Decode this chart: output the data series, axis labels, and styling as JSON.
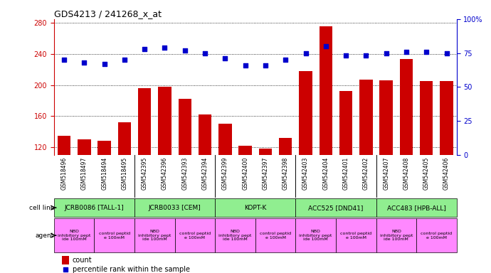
{
  "title": "GDS4213 / 241268_x_at",
  "samples": [
    "GSM518496",
    "GSM518497",
    "GSM518494",
    "GSM518495",
    "GSM542395",
    "GSM542396",
    "GSM542393",
    "GSM542394",
    "GSM542399",
    "GSM542400",
    "GSM542397",
    "GSM542398",
    "GSM542403",
    "GSM542404",
    "GSM542401",
    "GSM542402",
    "GSM542407",
    "GSM542408",
    "GSM542405",
    "GSM542406"
  ],
  "counts": [
    135,
    130,
    128,
    152,
    196,
    198,
    182,
    162,
    150,
    122,
    118,
    132,
    218,
    276,
    192,
    207,
    206,
    234,
    205,
    205
  ],
  "percentiles": [
    70,
    68,
    67,
    70,
    78,
    79,
    77,
    75,
    71,
    66,
    66,
    70,
    75,
    80,
    73,
    73,
    75,
    76,
    76,
    75
  ],
  "cell_lines": [
    {
      "label": "JCRB0086 [TALL-1]",
      "start": 0,
      "end": 4,
      "color": "#90EE90"
    },
    {
      "label": "JCRB0033 [CEM]",
      "start": 4,
      "end": 8,
      "color": "#90EE90"
    },
    {
      "label": "KOPT-K",
      "start": 8,
      "end": 12,
      "color": "#90EE90"
    },
    {
      "label": "ACC525 [DND41]",
      "start": 12,
      "end": 16,
      "color": "#90EE90"
    },
    {
      "label": "ACC483 [HPB-ALL]",
      "start": 16,
      "end": 20,
      "color": "#90EE90"
    }
  ],
  "agents": [
    {
      "label": "NBD\ninhibitory pept\nide 100mM",
      "start": 0,
      "end": 2,
      "color": "#FF88FF"
    },
    {
      "label": "control peptid\ne 100mM",
      "start": 2,
      "end": 4,
      "color": "#FF88FF"
    },
    {
      "label": "NBD\ninhibitory pept\nide 100mM",
      "start": 4,
      "end": 6,
      "color": "#FF88FF"
    },
    {
      "label": "control peptid\ne 100mM",
      "start": 6,
      "end": 8,
      "color": "#FF88FF"
    },
    {
      "label": "NBD\ninhibitory pept\nide 100mM",
      "start": 8,
      "end": 10,
      "color": "#FF88FF"
    },
    {
      "label": "control peptid\ne 100mM",
      "start": 10,
      "end": 12,
      "color": "#FF88FF"
    },
    {
      "label": "NBD\ninhibitory pept\nide 100mM",
      "start": 12,
      "end": 14,
      "color": "#FF88FF"
    },
    {
      "label": "control peptid\ne 100mM",
      "start": 14,
      "end": 16,
      "color": "#FF88FF"
    },
    {
      "label": "NBD\ninhibitory pept\nide 100mM",
      "start": 16,
      "end": 18,
      "color": "#FF88FF"
    },
    {
      "label": "control peptid\ne 100mM",
      "start": 18,
      "end": 20,
      "color": "#FF88FF"
    }
  ],
  "ylim_left": [
    110,
    285
  ],
  "yticks_left": [
    120,
    160,
    200,
    240,
    280
  ],
  "ylim_right": [
    0,
    100
  ],
  "yticks_right": [
    0,
    25,
    50,
    75,
    100
  ],
  "bar_color": "#CC0000",
  "dot_color": "#0000CC",
  "label_bg_color": "#C8C8C8",
  "cell_line_color": "#90EE90",
  "agent_color": "#FF88FF",
  "plot_bg_color": "#FFFFFF"
}
